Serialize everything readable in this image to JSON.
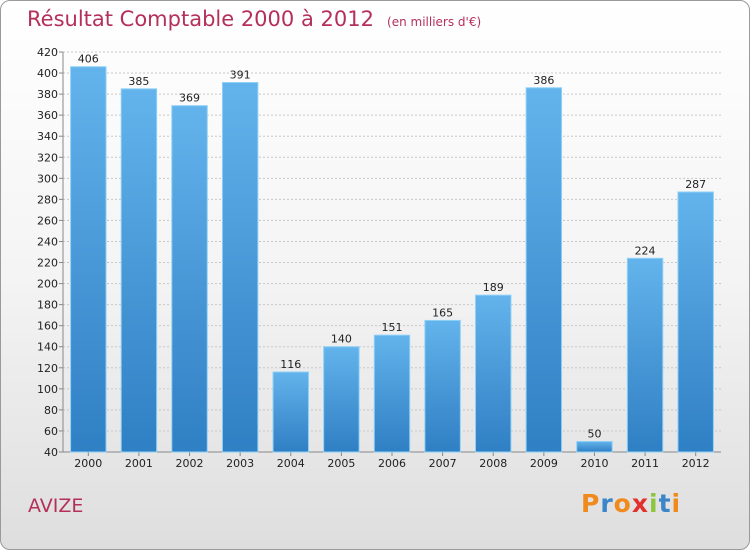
{
  "title": "Résultat Comptable 2000 à 2012",
  "subtitle": "(en milliers d'€)",
  "commune": "AVIZE",
  "logo": {
    "letters": [
      "P",
      "r",
      "o",
      "x",
      "i",
      "t",
      "i"
    ],
    "colors": [
      "#f08a1c",
      "#3a86c8",
      "#f08a1c",
      "#e2312c",
      "#8cc63f",
      "#3a86c8",
      "#f08a1c"
    ]
  },
  "colors": {
    "bar": "#3a8fd6",
    "bar_light": "#63b3ec",
    "title": "#b4305a"
  },
  "chart_data": {
    "type": "bar",
    "categories": [
      "2000",
      "2001",
      "2002",
      "2003",
      "2004",
      "2005",
      "2006",
      "2007",
      "2008",
      "2009",
      "2010",
      "2011",
      "2012"
    ],
    "values": [
      406,
      385,
      369,
      391,
      116,
      140,
      151,
      165,
      189,
      386,
      50,
      224,
      287
    ],
    "title": "Résultat Comptable 2000 à 2012",
    "ylim": [
      40,
      420
    ],
    "yticks": [
      40,
      60,
      80,
      100,
      120,
      140,
      160,
      180,
      200,
      220,
      240,
      260,
      280,
      300,
      320,
      340,
      360,
      380,
      400,
      420
    ],
    "grid": true,
    "legend": "none"
  }
}
